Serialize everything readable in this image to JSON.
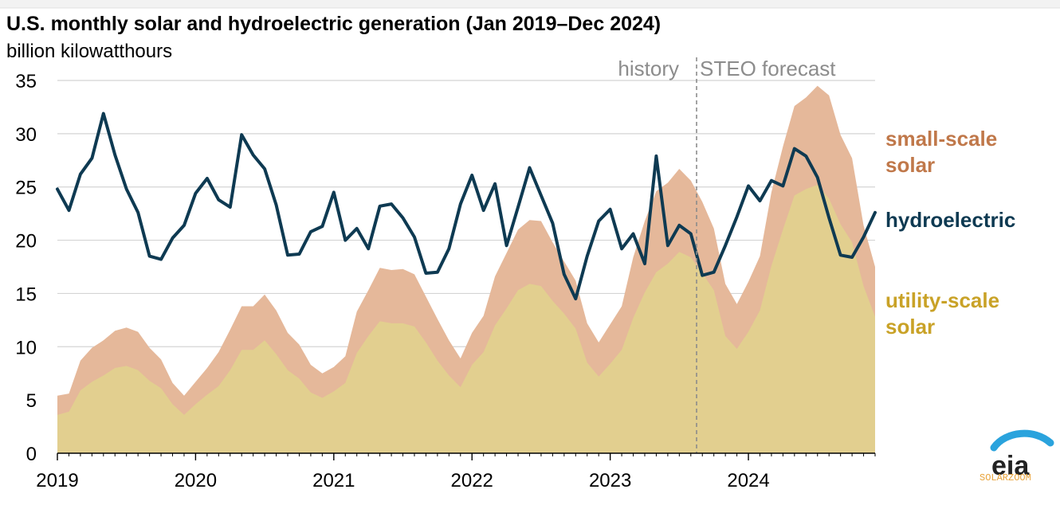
{
  "chart_data": {
    "type": "area",
    "title": "U.S. monthly solar and hydroelectric generation (Jan 2019–Dec 2024)",
    "ylabel": "billion kilowatthours",
    "xlabel": "",
    "ylim": [
      0,
      35
    ],
    "y_ticks": [
      "0",
      "5",
      "10",
      "15",
      "20",
      "25",
      "30",
      "35"
    ],
    "x_ticks": [
      "2019",
      "2020",
      "2021",
      "2022",
      "2023",
      "2024"
    ],
    "grid": "horizontal",
    "start": "2019-01",
    "months": 72,
    "forecast_start_index": 55.5,
    "annotations": {
      "history": "history",
      "forecast": "STEO forecast"
    },
    "series": [
      {
        "name": "utility-scale solar",
        "label": "utility-scale\nsolar",
        "color": "#c9a227",
        "fill": "#e2cf8f",
        "values": [
          3.6,
          3.9,
          5.9,
          6.7,
          7.3,
          8.0,
          8.2,
          7.8,
          6.8,
          6.1,
          4.6,
          3.6,
          4.6,
          5.5,
          6.3,
          7.8,
          9.7,
          9.7,
          10.6,
          9.3,
          7.8,
          7.0,
          5.7,
          5.2,
          5.8,
          6.6,
          9.4,
          11.0,
          12.4,
          12.2,
          12.2,
          11.9,
          10.4,
          8.7,
          7.3,
          6.2,
          8.3,
          9.5,
          12.0,
          13.6,
          15.3,
          15.9,
          15.7,
          14.3,
          13.1,
          11.7,
          8.5,
          7.2,
          8.4,
          9.7,
          12.7,
          15.1,
          17.0,
          17.8,
          18.9,
          18.4,
          16.9,
          15.3,
          11.0,
          9.8,
          11.4,
          13.4,
          17.6,
          21.0,
          24.2,
          24.8,
          25.2,
          23.9,
          21.5,
          19.8,
          15.7,
          12.8
        ]
      },
      {
        "name": "small-scale solar",
        "label": "small-scale\nsolar",
        "color": "#c7804f",
        "fill": "#e5b89a",
        "values": [
          5.4,
          5.6,
          8.7,
          9.9,
          10.6,
          11.5,
          11.8,
          11.4,
          9.9,
          8.8,
          6.6,
          5.4,
          6.7,
          8.0,
          9.5,
          11.6,
          13.8,
          13.8,
          14.9,
          13.4,
          11.3,
          10.2,
          8.3,
          7.5,
          8.1,
          9.1,
          13.3,
          15.3,
          17.4,
          17.2,
          17.3,
          16.8,
          14.7,
          12.6,
          10.6,
          8.9,
          11.3,
          12.9,
          16.6,
          18.8,
          21.0,
          21.9,
          21.8,
          19.8,
          18.0,
          16.2,
          12.2,
          10.4,
          12.1,
          13.8,
          18.4,
          21.8,
          24.6,
          25.4,
          26.7,
          25.6,
          23.6,
          21.1,
          15.9,
          14.0,
          16.1,
          18.5,
          24.5,
          28.8,
          32.6,
          33.4,
          34.5,
          33.6,
          29.9,
          27.7,
          21.4,
          17.5
        ]
      },
      {
        "name": "hydroelectric",
        "label": "hydroelectric",
        "color": "#0e3a52",
        "values": [
          24.8,
          22.8,
          26.2,
          27.7,
          31.9,
          28.0,
          24.8,
          22.6,
          18.5,
          18.2,
          20.2,
          21.4,
          24.4,
          25.8,
          23.8,
          23.1,
          29.9,
          28.0,
          26.7,
          23.3,
          18.6,
          18.7,
          20.8,
          21.3,
          24.5,
          20.0,
          21.1,
          19.2,
          23.2,
          23.4,
          22.1,
          20.3,
          16.9,
          17.0,
          19.2,
          23.4,
          26.1,
          22.8,
          25.3,
          19.5,
          23.1,
          26.8,
          24.2,
          21.6,
          16.8,
          14.5,
          18.5,
          21.8,
          22.9,
          19.2,
          20.6,
          17.8,
          27.9,
          19.5,
          21.4,
          20.6,
          16.7,
          17.0,
          19.5,
          22.2,
          25.1,
          23.7,
          25.6,
          25.1,
          28.6,
          27.9,
          25.9,
          22.1,
          18.6,
          18.4,
          20.3,
          22.6
        ]
      }
    ]
  },
  "logo": {
    "text": "eia",
    "watermark": "SOLARZOOM"
  }
}
